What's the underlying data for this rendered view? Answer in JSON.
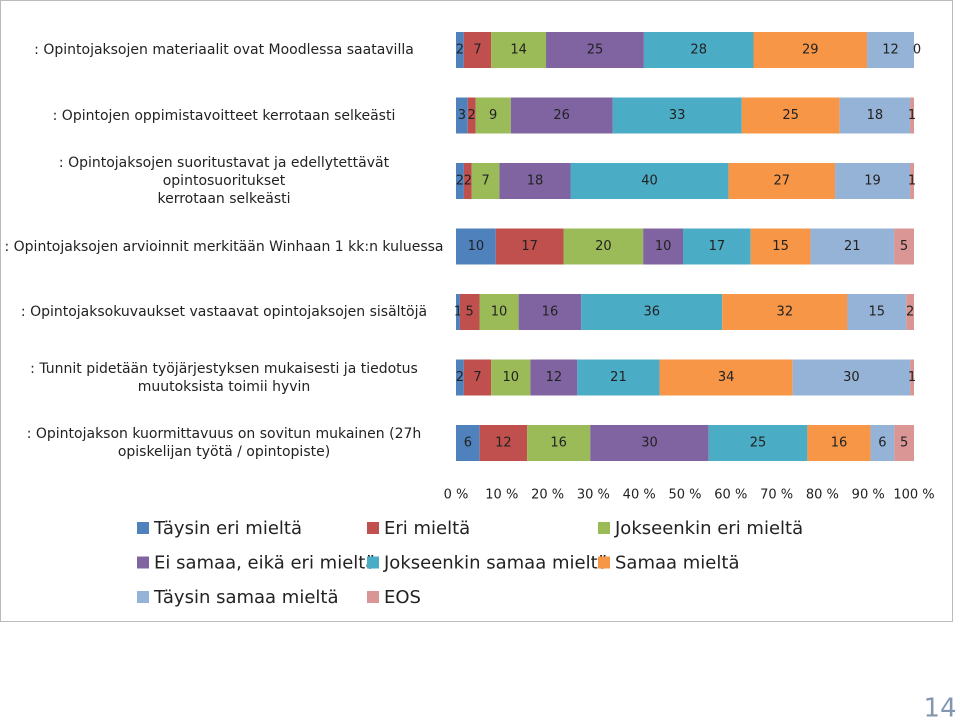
{
  "chart_data": {
    "type": "bar",
    "orientation": "horizontal",
    "stacked_percent": true,
    "categories": [
      ": Opintojaksojen materiaalit ovat Moodlessa saatavilla",
      ": Opintojen oppimistavoitteet kerrotaan selkeästi",
      ": Opintojaksojen suoritustavat ja edellytettävät opintosuoritukset\nkerrotaan selkeästi",
      ": Opintojaksojen arvioinnit merkitään Winhaan 1 kk:n kuluessa",
      ": Opintojaksokuvaukset vastaavat opintojaksojen sisältöjä",
      ": Tunnit pidetään työjärjestyksen mukaisesti ja tiedotus\nmuutoksista toimii hyvin",
      ": Opintojakson kuormittavuus on sovitun mukainen (27h\nopiskelijan työtä / opintopiste)"
    ],
    "series": [
      {
        "name": "Täysin eri mieltä",
        "color": "#4f81bd",
        "values": [
          2,
          3,
          2,
          10,
          1,
          2,
          6
        ]
      },
      {
        "name": "Eri mieltä",
        "color": "#c0504d",
        "values": [
          7,
          2,
          2,
          17,
          5,
          7,
          12
        ]
      },
      {
        "name": "Jokseenkin eri mieltä",
        "color": "#9bbb59",
        "values": [
          14,
          9,
          7,
          20,
          10,
          10,
          16
        ]
      },
      {
        "name": "Ei samaa, eikä eri mieltä",
        "color": "#8064a2",
        "values": [
          25,
          26,
          18,
          10,
          16,
          12,
          30
        ]
      },
      {
        "name": "Jokseenkin samaa mieltä",
        "color": "#4bacc6",
        "values": [
          28,
          33,
          40,
          17,
          36,
          21,
          25
        ]
      },
      {
        "name": "Samaa mieltä",
        "color": "#f79646",
        "values": [
          29,
          25,
          27,
          15,
          32,
          34,
          16
        ]
      },
      {
        "name": "Täysin samaa mieltä",
        "color": "#95b3d7",
        "values": [
          12,
          18,
          19,
          21,
          15,
          30,
          6
        ]
      },
      {
        "name": "EOS",
        "color": "#d99694",
        "values": [
          0,
          1,
          1,
          5,
          2,
          1,
          5
        ]
      }
    ],
    "xlim": [
      0,
      100
    ],
    "xticks": [
      {
        "value": 0,
        "label": "0 %"
      },
      {
        "value": 10,
        "label": "10 %"
      },
      {
        "value": 20,
        "label": "20 %"
      },
      {
        "value": 30,
        "label": "30 %"
      },
      {
        "value": 40,
        "label": "40 %"
      },
      {
        "value": 50,
        "label": "50 %"
      },
      {
        "value": 60,
        "label": "60 %"
      },
      {
        "value": 70,
        "label": "70 %"
      },
      {
        "value": 80,
        "label": "80 %"
      },
      {
        "value": 90,
        "label": "90 %"
      },
      {
        "value": 100,
        "label": "100 %"
      }
    ],
    "legend": "bottom"
  },
  "page_number": "14"
}
